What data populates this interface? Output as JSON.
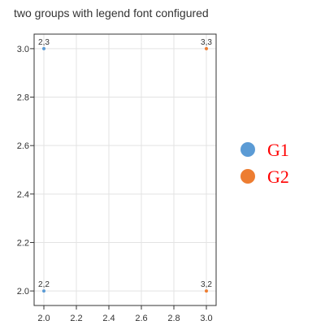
{
  "chart_data": {
    "type": "scatter",
    "title": "two groups with legend font configured",
    "xlabel": "",
    "ylabel": "",
    "xlim": [
      1.94,
      3.06
    ],
    "ylim": [
      1.94,
      3.06
    ],
    "xticks": [
      "2.0",
      "2.2",
      "2.4",
      "2.6",
      "2.8",
      "3.0"
    ],
    "yticks": [
      "2.0",
      "2.2",
      "2.4",
      "2.6",
      "2.8",
      "3.0"
    ],
    "grid": true,
    "legend": "right",
    "series": [
      {
        "name": "G1",
        "color": "#5b9bd5",
        "points": [
          {
            "x": 2,
            "y": 3,
            "label": "2,3"
          },
          {
            "x": 2,
            "y": 2,
            "label": "2,2"
          }
        ]
      },
      {
        "name": "G2",
        "color": "#ed7d31",
        "points": [
          {
            "x": 3,
            "y": 3,
            "label": "3,3"
          },
          {
            "x": 3,
            "y": 2,
            "label": "3,2"
          }
        ]
      }
    ],
    "legend_text_color": "#ff0000"
  }
}
